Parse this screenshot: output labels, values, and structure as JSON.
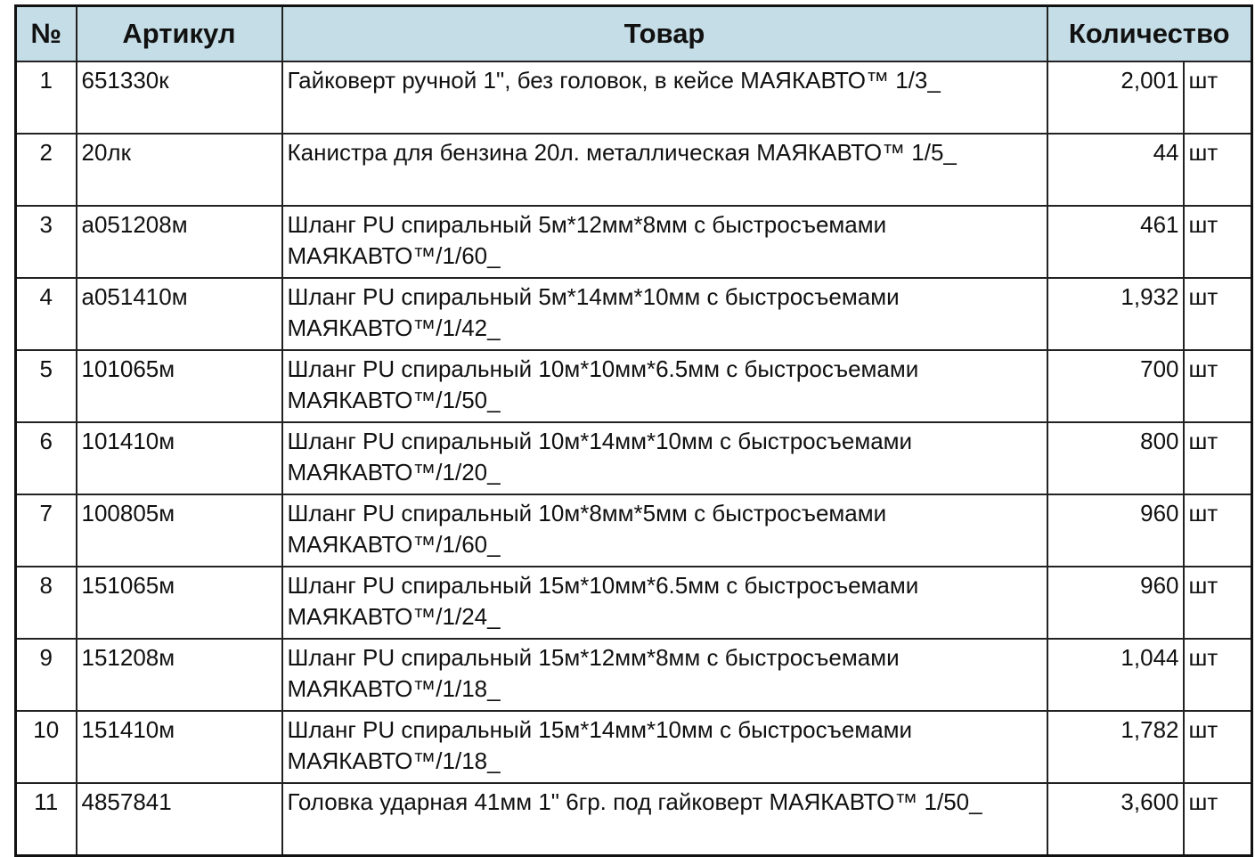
{
  "header": {
    "num": "№",
    "article": "Артикул",
    "product": "Товар",
    "quantity": "Количество"
  },
  "colors": {
    "header_bg": "#c5dde6"
  },
  "rows": [
    {
      "num": "1",
      "article": "651330к",
      "product": "Гайковерт ручной  1\", без головок,  в кейсе  МАЯКАВТО™ 1/3_",
      "qty": "2,001",
      "unit": "шт"
    },
    {
      "num": "2",
      "article": "20лк",
      "product": "Канистра  для бензина 20л. металлическая МАЯКАВТО™ 1/5_",
      "qty": "44",
      "unit": "шт"
    },
    {
      "num": "3",
      "article": "а051208м",
      "product": "Шланг PU спиральный  5м*12мм*8мм с быстросъемами МАЯКАВТО™/1/60_",
      "qty": "461",
      "unit": "шт"
    },
    {
      "num": "4",
      "article": "а051410м",
      "product": "Шланг PU спиральный  5м*14мм*10мм с быстросъемами МАЯКАВТО™/1/42_",
      "qty": "1,932",
      "unit": "шт"
    },
    {
      "num": "5",
      "article": "101065м",
      "product": "Шланг PU спиральный 10м*10мм*6.5мм с быстросъемами МАЯКАВТО™/1/50_",
      "qty": "700",
      "unit": "шт"
    },
    {
      "num": "6",
      "article": "101410м",
      "product": "Шланг PU спиральный 10м*14мм*10мм с быстросъемами МАЯКАВТО™/1/20_",
      "qty": "800",
      "unit": "шт"
    },
    {
      "num": "7",
      "article": "100805м",
      "product": "Шланг PU спиральный 10м*8мм*5мм с быстросъемами МАЯКАВТО™/1/60_",
      "qty": "960",
      "unit": "шт"
    },
    {
      "num": "8",
      "article": "151065м",
      "product": "Шланг PU спиральный 15м*10мм*6.5мм с быстросъемами МАЯКАВТО™/1/24_",
      "qty": "960",
      "unit": "шт"
    },
    {
      "num": "9",
      "article": "151208м",
      "product": "Шланг PU спиральный 15м*12мм*8мм с быстросъемами МАЯКАВТО™/1/18_",
      "qty": "1,044",
      "unit": "шт"
    },
    {
      "num": "10",
      "article": "151410м",
      "product": "Шланг PU спиральный 15м*14мм*10мм с быстросъемами МАЯКАВТО™/1/18_",
      "qty": "1,782",
      "unit": "шт"
    },
    {
      "num": "11",
      "article": "4857841",
      "product": "Головка ударная  41мм 1\"  6гр. под гайковерт МАЯКАВТО™ 1/50_",
      "qty": "3,600",
      "unit": "шт"
    }
  ]
}
